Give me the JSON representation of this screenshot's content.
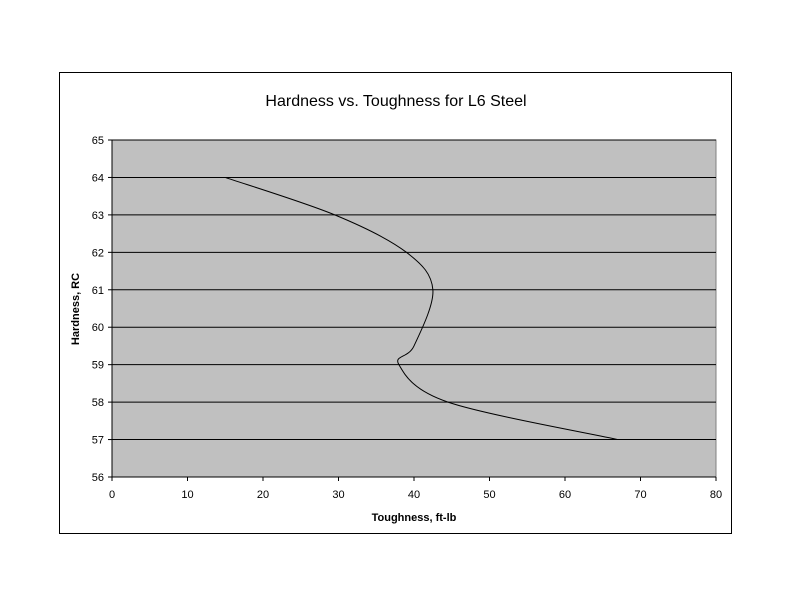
{
  "chart_data": {
    "type": "line",
    "title": "Hardness vs. Toughness for L6 Steel",
    "xlabel": "Toughness, ft-lb",
    "ylabel": "Hardness, RC",
    "xlim": [
      0,
      80
    ],
    "ylim": [
      56,
      65
    ],
    "x_ticks": [
      "0",
      "10",
      "20",
      "30",
      "40",
      "50",
      "60",
      "70",
      "80"
    ],
    "y_ticks": [
      "56",
      "57",
      "58",
      "59",
      "60",
      "61",
      "62",
      "63",
      "64",
      "65"
    ],
    "grid": "horizontal",
    "legend": "none",
    "series": [
      {
        "x": [
          15,
          29.5,
          39,
          42.5,
          40,
          38,
          44.5,
          67
        ],
        "y": [
          64,
          63,
          62,
          61,
          59.5,
          59,
          58,
          57
        ],
        "color": "#000000"
      }
    ],
    "colors": {
      "plot_background": "#c0c0c0",
      "line": "#000000",
      "grid": "#000000"
    }
  }
}
